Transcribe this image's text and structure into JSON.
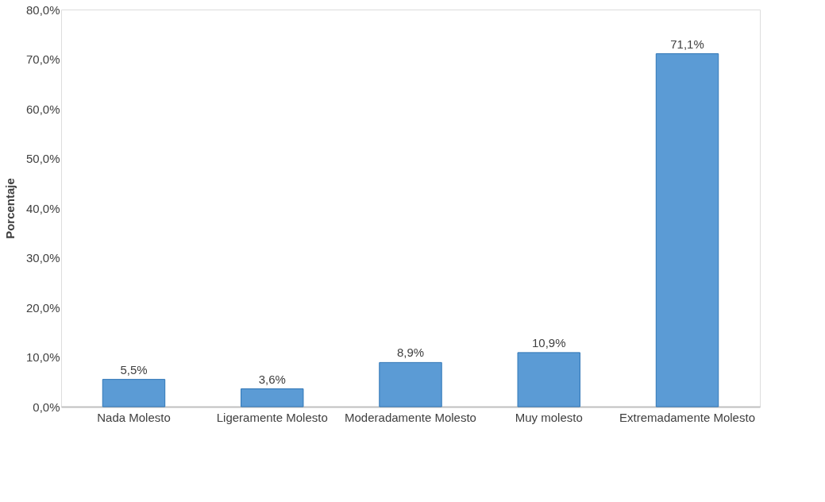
{
  "chart_data": {
    "type": "bar",
    "ylabel": "Porcentaje",
    "categories": [
      "Nada Molesto",
      "Ligeramente Molesto",
      "Moderadamente Molesto",
      "Muy molesto",
      "Extremadamente Molesto"
    ],
    "values": [
      5.5,
      3.6,
      8.9,
      10.9,
      71.1
    ],
    "value_labels": [
      "5,5%",
      "3,6%",
      "8,9%",
      "10,9%",
      "71,1%"
    ],
    "color": "#5b9bd5",
    "ylim": [
      0,
      80
    ],
    "yticks": [
      {
        "value": 0,
        "label": "0,0%"
      },
      {
        "value": 10,
        "label": "10,0%"
      },
      {
        "value": 20,
        "label": "20,0%"
      },
      {
        "value": 30,
        "label": "30,0%"
      },
      {
        "value": 40,
        "label": "40,0%"
      },
      {
        "value": 50,
        "label": "50,0%"
      },
      {
        "value": 60,
        "label": "60,0%"
      },
      {
        "value": 70,
        "label": "70,0%"
      },
      {
        "value": 80,
        "label": "80,0%"
      }
    ],
    "grid": false
  }
}
